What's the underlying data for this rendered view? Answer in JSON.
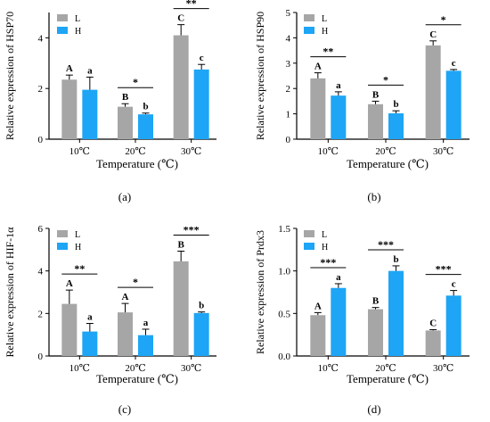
{
  "colors": {
    "L": "#a6a6a6",
    "H": "#1ea5f5"
  },
  "chart_data": [
    {
      "type": "bar",
      "panel_label": "(a)",
      "ylabel": "Relative expression of  HSP70",
      "xlabel": "Temperature (℃)",
      "categories": [
        "10℃",
        "20℃",
        "30℃"
      ],
      "ylim": [
        0,
        5
      ],
      "yticks": [
        0,
        2,
        4
      ],
      "legend": [
        "L",
        "H"
      ],
      "series": [
        {
          "name": "L",
          "values": [
            2.35,
            1.28,
            4.1
          ],
          "errors": [
            0.18,
            0.12,
            0.42
          ],
          "letters": [
            "A",
            "B",
            "C"
          ]
        },
        {
          "name": "H",
          "values": [
            1.95,
            0.98,
            2.75
          ],
          "errors": [
            0.5,
            0.05,
            0.2
          ],
          "letters": [
            "a",
            "b",
            "c"
          ]
        }
      ],
      "significance": [
        "",
        "*",
        "**"
      ]
    },
    {
      "type": "bar",
      "panel_label": "(b)",
      "ylabel": "Relative expression of  HSP90",
      "xlabel": "Temperature (℃)",
      "categories": [
        "10℃",
        "20℃",
        "30℃"
      ],
      "ylim": [
        0,
        5
      ],
      "yticks": [
        0,
        1,
        2,
        3,
        4,
        5
      ],
      "legend": [
        "L",
        "H"
      ],
      "series": [
        {
          "name": "L",
          "values": [
            2.4,
            1.38,
            3.7
          ],
          "errors": [
            0.22,
            0.12,
            0.18
          ],
          "letters": [
            "A",
            "B",
            "C"
          ]
        },
        {
          "name": "H",
          "values": [
            1.72,
            1.02,
            2.7
          ],
          "errors": [
            0.15,
            0.1,
            0.05
          ],
          "letters": [
            "a",
            "b",
            "c"
          ]
        }
      ],
      "significance": [
        "**",
        "*",
        "*"
      ]
    },
    {
      "type": "bar",
      "panel_label": "(c)",
      "ylabel": "Relative expression of  HIF-1α",
      "xlabel": "Temperature (℃)",
      "categories": [
        "10℃",
        "20℃",
        "30℃"
      ],
      "ylim": [
        0,
        6
      ],
      "yticks": [
        0,
        2,
        4,
        6
      ],
      "legend": [
        "L",
        "H"
      ],
      "series": [
        {
          "name": "L",
          "values": [
            2.45,
            2.05,
            4.45
          ],
          "errors": [
            0.65,
            0.42,
            0.48
          ],
          "letters": [
            "A",
            "A",
            "B"
          ]
        },
        {
          "name": "H",
          "values": [
            1.15,
            0.98,
            2.02
          ],
          "errors": [
            0.38,
            0.28,
            0.05
          ],
          "letters": [
            "a",
            "a",
            "b"
          ]
        }
      ],
      "significance": [
        "**",
        "*",
        "***"
      ]
    },
    {
      "type": "bar",
      "panel_label": "(d)",
      "ylabel": "Relative expression of  Prdx3",
      "xlabel": "Temperature (℃)",
      "categories": [
        "10℃",
        "20℃",
        "30℃"
      ],
      "ylim": [
        0,
        1.5
      ],
      "yticks": [
        0,
        0.5,
        1.0,
        1.5
      ],
      "ytick_labels": [
        "0.0",
        "0.5",
        "1.0",
        "1.5"
      ],
      "legend": [
        "L",
        "H"
      ],
      "series": [
        {
          "name": "L",
          "values": [
            0.48,
            0.55,
            0.3
          ],
          "errors": [
            0.03,
            0.02,
            0.01
          ],
          "letters": [
            "A",
            "B",
            "C"
          ]
        },
        {
          "name": "H",
          "values": [
            0.8,
            1.0,
            0.71
          ],
          "errors": [
            0.05,
            0.06,
            0.06
          ],
          "letters": [
            "a",
            "b",
            "c"
          ]
        }
      ],
      "significance": [
        "***",
        "***",
        "***"
      ]
    }
  ]
}
